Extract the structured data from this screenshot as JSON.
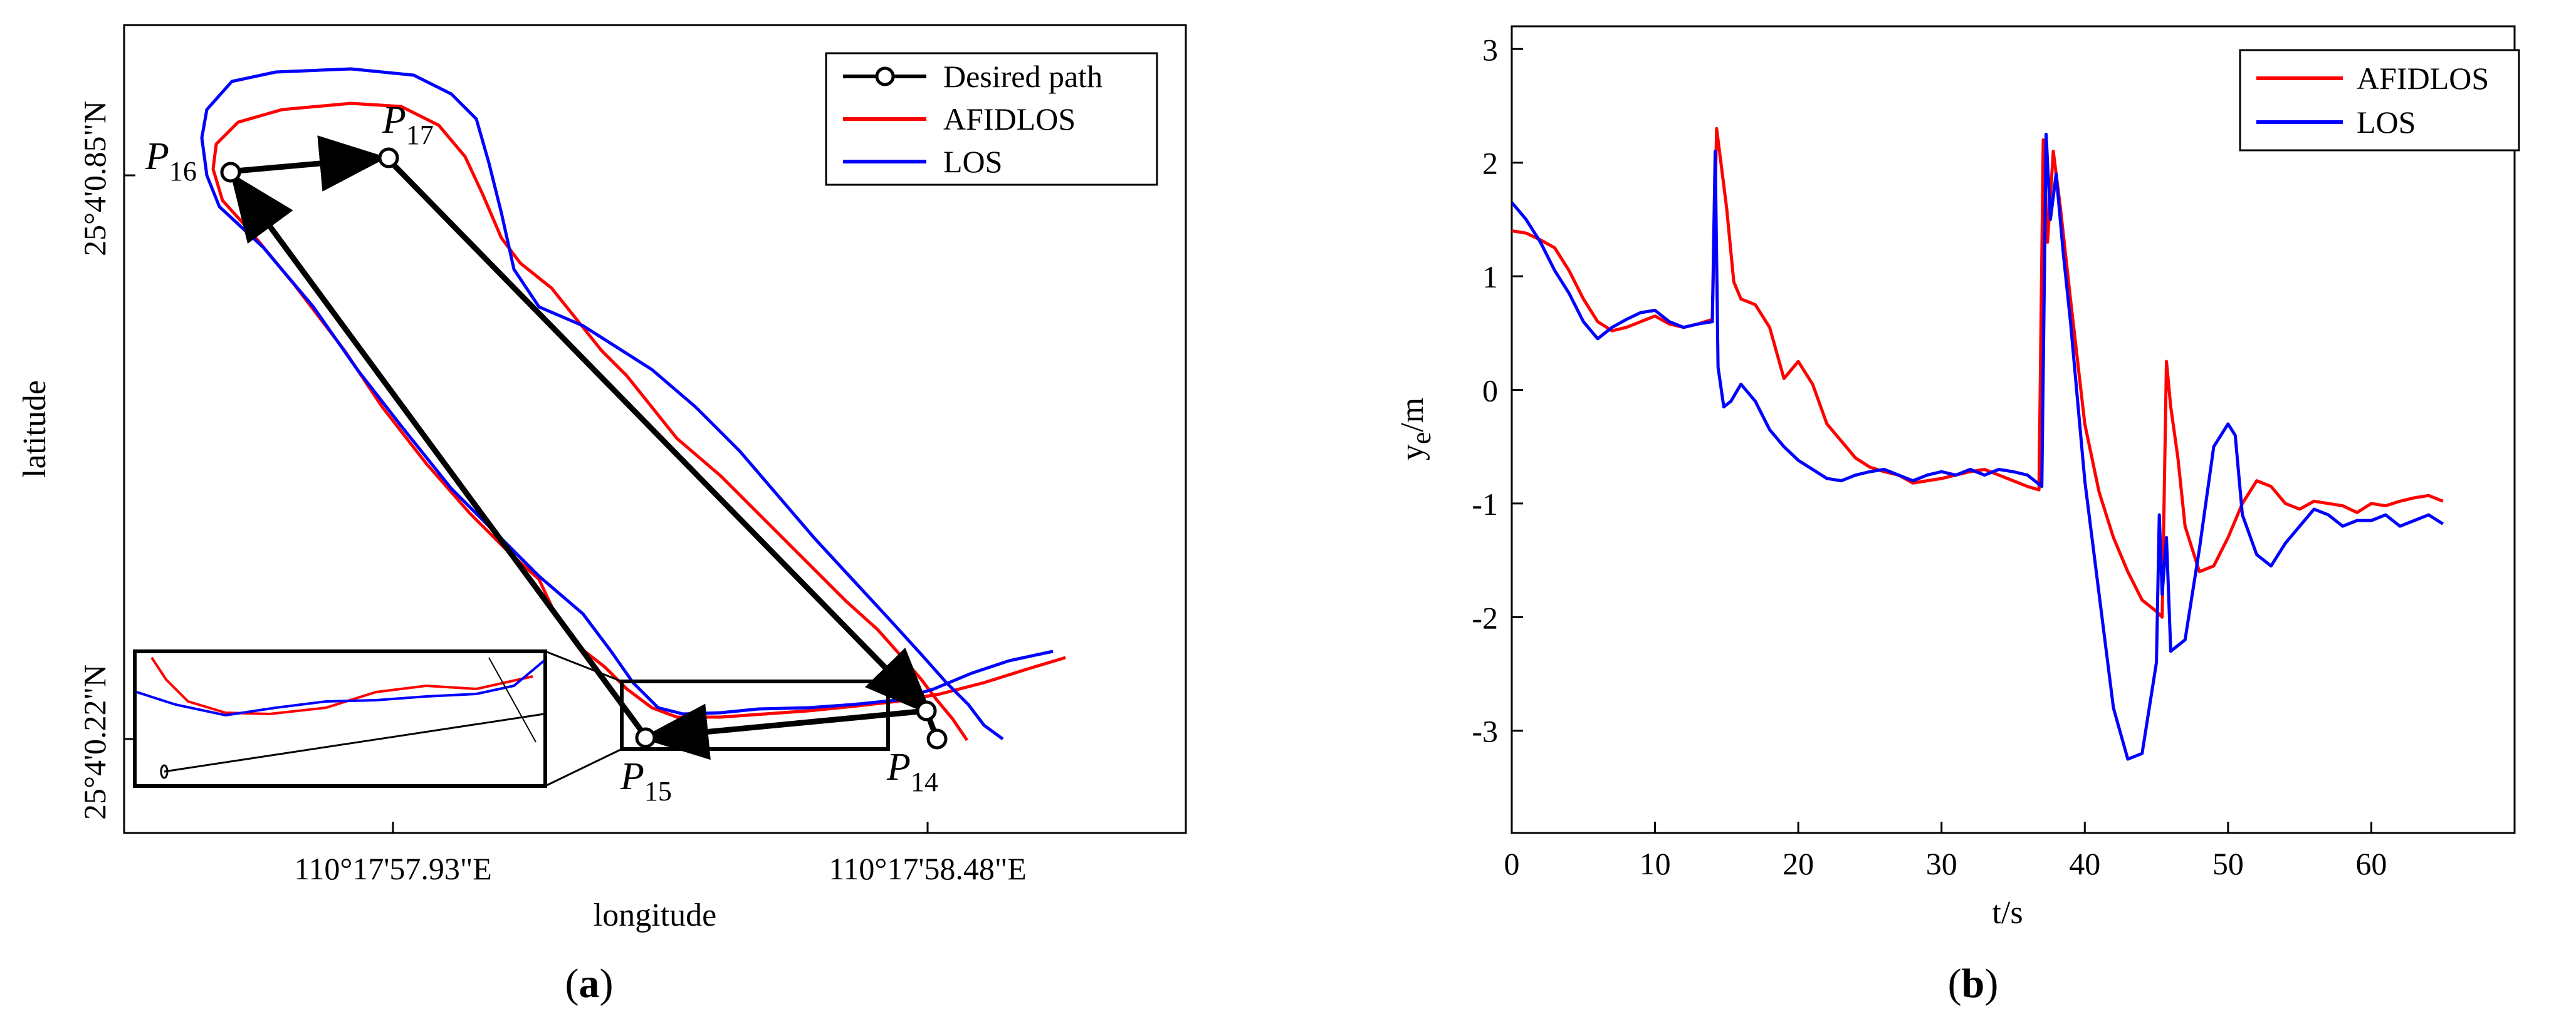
{
  "figure": {
    "panel_a_label": "(a)",
    "panel_a_letter": "a",
    "panel_b_label": "(b)",
    "panel_b_letter": "b"
  },
  "chart_data": [
    {
      "type": "line",
      "panel": "a",
      "title": "",
      "xlabel": "longitude",
      "ylabel": "latitude",
      "x_ticks": [
        "110°17'57.93\"E",
        "110°17'58.48\"E"
      ],
      "y_ticks": [
        "25°4'0.85\"N",
        "25°4'0.22\"N"
      ],
      "legend": [
        "Desired path",
        "AFIDLOS",
        "LOS"
      ],
      "legend_position": "top-right",
      "waypoints": [
        {
          "label": "P",
          "sub": "14"
        },
        {
          "label": "P",
          "sub": "15"
        },
        {
          "label": "P",
          "sub": "16"
        },
        {
          "label": "P",
          "sub": "17"
        }
      ],
      "inset": "magnified region near P15-P14 segment",
      "colors": {
        "desired": "#000000",
        "afidlos": "#ff0000",
        "los": "#0000ff"
      }
    },
    {
      "type": "line",
      "panel": "b",
      "title": "",
      "xlabel": "t/s",
      "ylabel": "y_e/m",
      "xlim": [
        0,
        70
      ],
      "ylim": [
        -3.9,
        3.2
      ],
      "x_ticks": [
        0,
        10,
        20,
        30,
        40,
        50,
        60
      ],
      "y_ticks": [
        3,
        2,
        1,
        0,
        -1,
        -2,
        -3
      ],
      "legend": [
        "AFIDLOS",
        "LOS"
      ],
      "legend_position": "top-right",
      "series": [
        {
          "name": "AFIDLOS",
          "color": "#ff0000",
          "x": [
            0,
            1,
            2,
            3,
            4,
            5,
            6,
            7,
            8,
            9,
            10,
            11,
            12,
            13,
            14,
            14.3,
            14.5,
            15,
            15.5,
            16,
            17,
            18,
            19,
            20,
            21,
            22,
            23,
            24,
            25,
            26,
            27,
            28,
            29,
            30,
            31,
            32,
            33,
            34,
            35,
            36,
            36.8,
            37.1,
            37.4,
            37.8,
            38.3,
            39,
            40,
            41,
            42,
            43,
            44,
            45,
            45.4,
            45.7,
            46,
            46.5,
            47,
            47.5,
            48,
            49,
            50,
            51,
            52,
            53,
            54,
            55,
            56,
            57,
            58,
            59,
            60,
            61,
            62,
            63,
            64,
            65
          ],
          "y": [
            1.4,
            1.38,
            1.32,
            1.25,
            1.05,
            0.8,
            0.6,
            0.52,
            0.55,
            0.6,
            0.65,
            0.58,
            0.55,
            0.58,
            0.62,
            2.3,
            2.1,
            1.6,
            0.95,
            0.8,
            0.75,
            0.55,
            0.1,
            0.25,
            0.05,
            -0.3,
            -0.45,
            -0.6,
            -0.68,
            -0.72,
            -0.75,
            -0.82,
            -0.8,
            -0.78,
            -0.75,
            -0.72,
            -0.7,
            -0.75,
            -0.8,
            -0.85,
            -0.88,
            2.2,
            1.3,
            2.1,
            1.6,
            0.8,
            -0.3,
            -0.9,
            -1.3,
            -1.6,
            -1.85,
            -1.95,
            -2.0,
            0.25,
            -0.15,
            -0.6,
            -1.2,
            -1.4,
            -1.6,
            -1.55,
            -1.3,
            -1.0,
            -0.8,
            -0.85,
            -1.0,
            -1.05,
            -0.98,
            -1.0,
            -1.02,
            -1.08,
            -1.0,
            -1.02,
            -0.98,
            -0.95,
            -0.93,
            -0.98
          ]
        },
        {
          "name": "LOS",
          "color": "#0000ff",
          "x": [
            0,
            1,
            2,
            3,
            4,
            5,
            6,
            7,
            8,
            9,
            10,
            11,
            12,
            13,
            14,
            14.2,
            14.4,
            14.8,
            15.3,
            16,
            17,
            18,
            19,
            20,
            21,
            22,
            23,
            24,
            25,
            26,
            27,
            28,
            29,
            30,
            31,
            32,
            33,
            34,
            35,
            36,
            37,
            37.3,
            37.6,
            38,
            38.5,
            39,
            40,
            41,
            42,
            43,
            44,
            45,
            45.2,
            45.4,
            45.7,
            46,
            47,
            48,
            49,
            50,
            50.5,
            51,
            52,
            53,
            54,
            55,
            56,
            57,
            58,
            59,
            60,
            61,
            62,
            63,
            64,
            65
          ],
          "y": [
            1.65,
            1.5,
            1.3,
            1.05,
            0.85,
            0.6,
            0.45,
            0.55,
            0.62,
            0.68,
            0.7,
            0.6,
            0.55,
            0.58,
            0.6,
            2.1,
            0.2,
            -0.15,
            -0.1,
            0.05,
            -0.1,
            -0.35,
            -0.5,
            -0.62,
            -0.7,
            -0.78,
            -0.8,
            -0.75,
            -0.72,
            -0.7,
            -0.75,
            -0.8,
            -0.75,
            -0.72,
            -0.75,
            -0.7,
            -0.75,
            -0.7,
            -0.72,
            -0.75,
            -0.85,
            2.25,
            1.5,
            1.9,
            1.2,
            0.6,
            -0.8,
            -1.8,
            -2.8,
            -3.25,
            -3.2,
            -2.4,
            -1.1,
            -1.8,
            -1.3,
            -2.3,
            -2.2,
            -1.4,
            -0.5,
            -0.3,
            -0.4,
            -1.1,
            -1.45,
            -1.55,
            -1.35,
            -1.2,
            -1.05,
            -1.1,
            -1.2,
            -1.15,
            -1.15,
            -1.1,
            -1.2,
            -1.15,
            -1.1,
            -1.18
          ]
        }
      ]
    }
  ]
}
